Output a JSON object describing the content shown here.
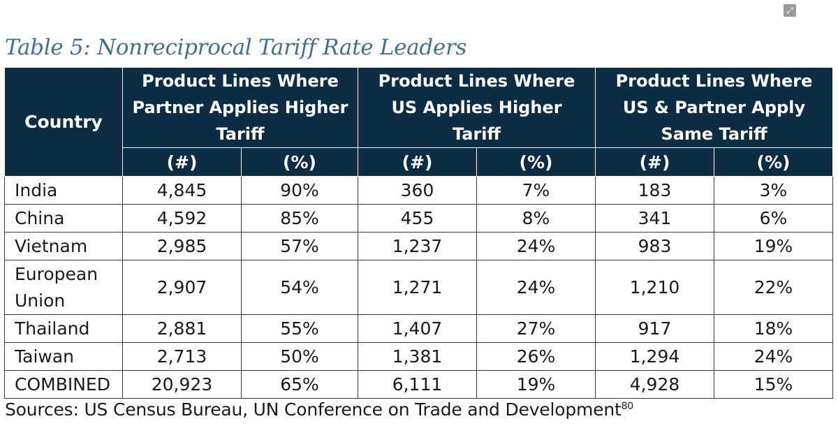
{
  "title": "Table 5: Nonreciprocal Tariff Rate Leaders",
  "expand_icon": "fullscreen-icon",
  "colors": {
    "header_bg": "#0d2d45",
    "title": "#3f6f94",
    "border": "#3a3a3a"
  },
  "table": {
    "country_header": "Country",
    "groups": [
      {
        "label_lines": [
          "Product Lines Where",
          "Partner Applies Higher",
          "Tariff"
        ]
      },
      {
        "label_lines": [
          "Product Lines Where",
          "US Applies Higher",
          "Tariff"
        ]
      },
      {
        "label_lines": [
          "Product Lines Where",
          "US & Partner Apply",
          "Same Tariff"
        ]
      }
    ],
    "subheaders": [
      "(#)",
      "(%)",
      "(#)",
      "(%)",
      "(#)",
      "(%)"
    ],
    "rows": [
      {
        "country_lines": [
          "India"
        ],
        "values": [
          "4,845",
          "90%",
          "360",
          "7%",
          "183",
          "3%"
        ]
      },
      {
        "country_lines": [
          "China"
        ],
        "values": [
          "4,592",
          "85%",
          "455",
          "8%",
          "341",
          "6%"
        ]
      },
      {
        "country_lines": [
          "Vietnam"
        ],
        "values": [
          "2,985",
          "57%",
          "1,237",
          "24%",
          "983",
          "19%"
        ]
      },
      {
        "country_lines": [
          "European",
          "Union"
        ],
        "values": [
          "2,907",
          "54%",
          "1,271",
          "24%",
          "1,210",
          "22%"
        ]
      },
      {
        "country_lines": [
          "Thailand"
        ],
        "values": [
          "2,881",
          "55%",
          "1,407",
          "27%",
          "917",
          "18%"
        ]
      },
      {
        "country_lines": [
          "Taiwan"
        ],
        "values": [
          "2,713",
          "50%",
          "1,381",
          "26%",
          "1,294",
          "24%"
        ]
      },
      {
        "country_lines": [
          "COMBINED"
        ],
        "values": [
          "20,923",
          "65%",
          "6,111",
          "19%",
          "4,928",
          "15%"
        ]
      }
    ]
  },
  "sources": {
    "text": "Sources: US Census Bureau, UN Conference on Trade and Development",
    "footnote": "80"
  }
}
